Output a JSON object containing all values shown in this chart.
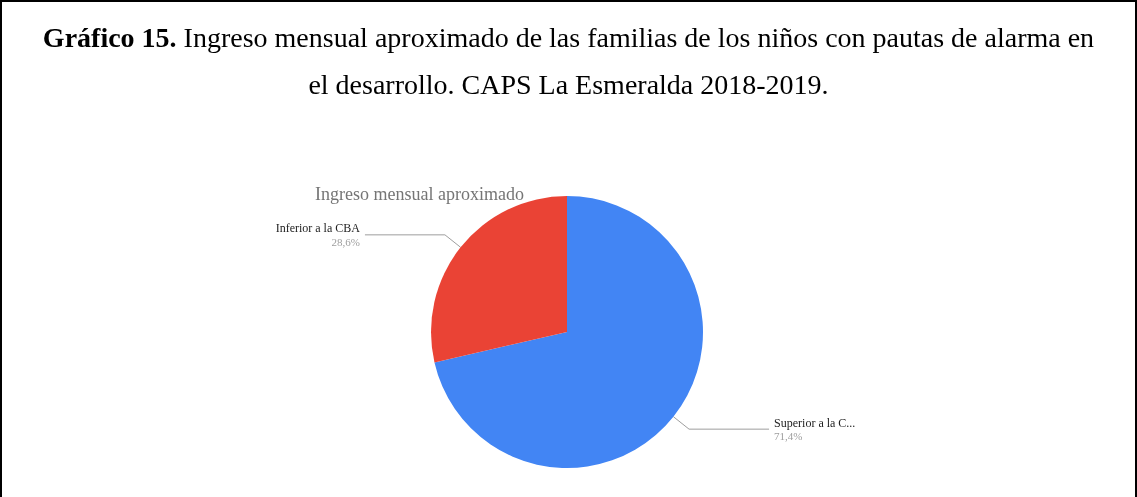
{
  "chart_data": {
    "type": "pie",
    "title": "Gráfico 15. Ingreso mensual aproximado de las familias de los niños con pautas de alarma en el desarrollo. CAPS La Esmeralda 2018-2019.",
    "subtitle": "Ingreso mensual aproximado",
    "categories": [
      "Superior a la C...",
      "Inferior a la CBA"
    ],
    "values": [
      71.4,
      28.6
    ],
    "colors": [
      "#4285f4",
      "#ea4335"
    ],
    "value_labels": [
      "71,4%",
      "28,6%"
    ],
    "legend": false
  }
}
